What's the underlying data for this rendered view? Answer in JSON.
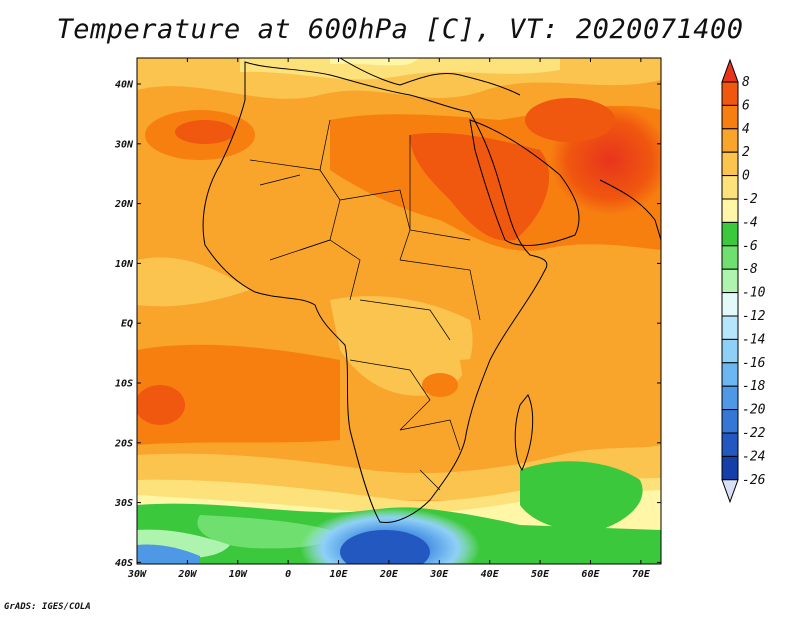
{
  "title": "Temperature at 600hPa [C], VT: 2020071400",
  "credit": "GrADS: IGES/COLA",
  "map": {
    "lon_ticks": [
      "30W",
      "20W",
      "10W",
      "0",
      "10E",
      "20E",
      "30E",
      "40E",
      "50E",
      "60E",
      "70E"
    ],
    "lat_ticks": [
      "40N",
      "30N",
      "20N",
      "10N",
      "EQ",
      "10S",
      "20S",
      "30S",
      "40S"
    ]
  },
  "colorbar": {
    "labels": [
      "8",
      "6",
      "4",
      "2",
      "0",
      "-2",
      "-4",
      "-6",
      "-8",
      "-10",
      "-12",
      "-14",
      "-16",
      "-18",
      "-20",
      "-22",
      "-24",
      "-26"
    ],
    "colors": [
      "#e8341d",
      "#f0570f",
      "#f77f10",
      "#f9a42b",
      "#fbc44e",
      "#fde17a",
      "#fff6a8",
      "#3cc83c",
      "#6fe06f",
      "#aef3ae",
      "#e2fbfa",
      "#b6e6fb",
      "#8fd0f7",
      "#6cb6f1",
      "#4f98e6",
      "#3677d6",
      "#2458c1",
      "#143ea8",
      "#0b1e78"
    ]
  }
}
